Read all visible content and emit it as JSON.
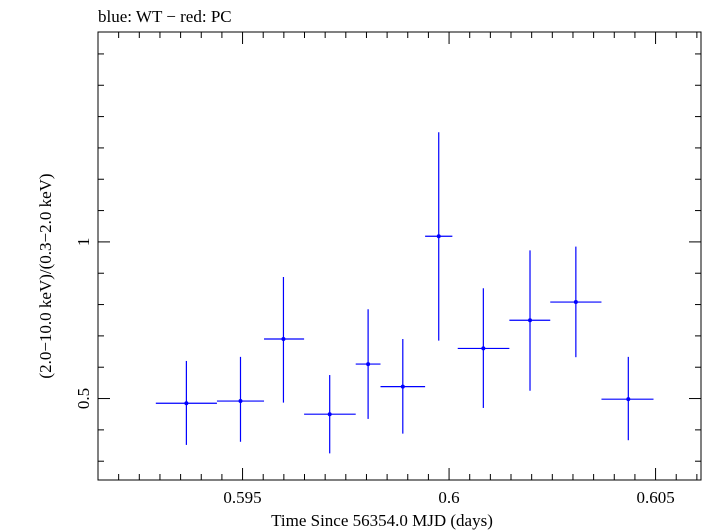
{
  "chart_data": {
    "type": "scatter",
    "title": "blue: WT − red: PC",
    "xlabel": "Time Since 56354.0 MJD (days)",
    "ylabel": "(2.0−10.0 keV)/(0.3−2.0 keV)",
    "xlim": [
      0.5915,
      0.6061
    ],
    "ylim": [
      0.24,
      1.67
    ],
    "x_major_ticks": [
      0.595,
      0.6,
      0.605
    ],
    "x_tick_labels": [
      "0.595",
      "0.6",
      "0.605"
    ],
    "y_major_ticks": [
      0.5,
      1
    ],
    "y_tick_labels": [
      "0.5",
      "1"
    ],
    "grid": false,
    "series": [
      {
        "color": "#0000ff",
        "points": [
          {
            "x": 0.59364,
            "xlo": 0.5929,
            "xhi": 0.59438,
            "y": 0.485,
            "ylo": 0.352,
            "yhi": 0.62
          },
          {
            "x": 0.59495,
            "xlo": 0.59438,
            "xhi": 0.59552,
            "y": 0.492,
            "ylo": 0.362,
            "yhi": 0.633
          },
          {
            "x": 0.59599,
            "xlo": 0.59552,
            "xhi": 0.59649,
            "y": 0.69,
            "ylo": 0.487,
            "yhi": 0.888
          },
          {
            "x": 0.59711,
            "xlo": 0.59649,
            "xhi": 0.59774,
            "y": 0.45,
            "ylo": 0.325,
            "yhi": 0.575
          },
          {
            "x": 0.59804,
            "xlo": 0.59774,
            "xhi": 0.59834,
            "y": 0.61,
            "ylo": 0.435,
            "yhi": 0.785
          },
          {
            "x": 0.59888,
            "xlo": 0.59834,
            "xhi": 0.59942,
            "y": 0.538,
            "ylo": 0.388,
            "yhi": 0.69
          },
          {
            "x": 0.59975,
            "xlo": 0.59942,
            "xhi": 0.60008,
            "y": 1.018,
            "ylo": 0.685,
            "yhi": 1.35
          },
          {
            "x": 0.60083,
            "xlo": 0.60021,
            "xhi": 0.60146,
            "y": 0.66,
            "ylo": 0.47,
            "yhi": 0.852
          },
          {
            "x": 0.60196,
            "xlo": 0.60146,
            "xhi": 0.60245,
            "y": 0.75,
            "ylo": 0.525,
            "yhi": 0.973
          },
          {
            "x": 0.60307,
            "xlo": 0.60245,
            "xhi": 0.60369,
            "y": 0.808,
            "ylo": 0.632,
            "yhi": 0.985
          },
          {
            "x": 0.60434,
            "xlo": 0.60369,
            "xhi": 0.60495,
            "y": 0.498,
            "ylo": 0.367,
            "yhi": 0.633
          }
        ]
      }
    ]
  }
}
